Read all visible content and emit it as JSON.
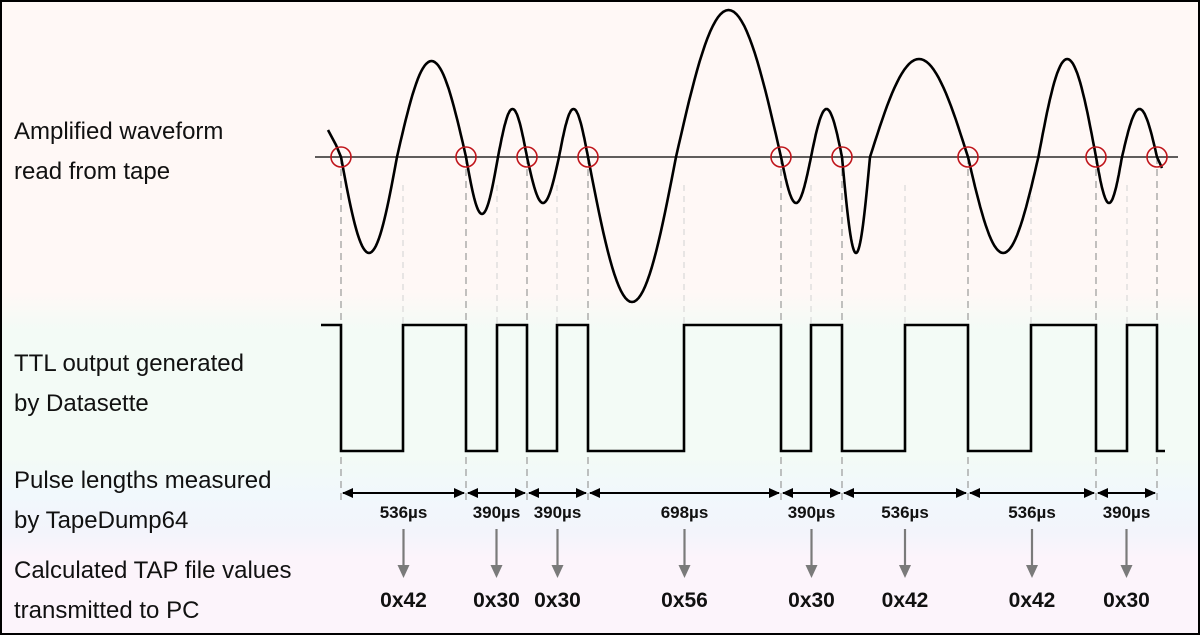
{
  "labels": {
    "waveform": [
      "Amplified waveform",
      "read from tape"
    ],
    "ttl": [
      "TTL output generated",
      "by Datasette"
    ],
    "pulse": [
      "Pulse lengths measured",
      "by TapeDump64"
    ],
    "tap": [
      "Calculated TAP file values",
      "transmitted to PC"
    ]
  },
  "pulses": [
    {
      "duration": "536µs",
      "value": "0x42"
    },
    {
      "duration": "390µs",
      "value": "0x30"
    },
    {
      "duration": "390µs",
      "value": "0x30"
    },
    {
      "duration": "698µs",
      "value": "0x56"
    },
    {
      "duration": "390µs",
      "value": "0x30"
    },
    {
      "duration": "536µs",
      "value": "0x42"
    },
    {
      "duration": "536µs",
      "value": "0x42"
    },
    {
      "duration": "390µs",
      "value": "0x30"
    }
  ],
  "colors": {
    "waveform_band": "#fff8f6",
    "ttl_band": "#f3fbf6",
    "pulse_band": "#f1f8fc",
    "tap_band": "#fcf4fb",
    "marker": "#c0151b",
    "arrow": "#7a7a7a",
    "stroke": "#000000"
  }
}
